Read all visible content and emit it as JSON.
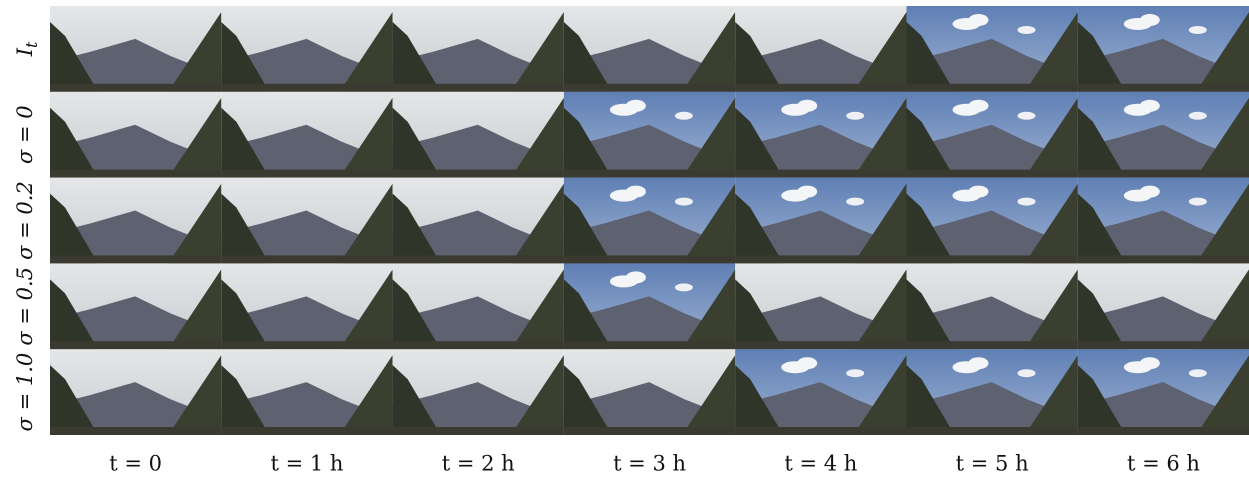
{
  "rows": [
    {
      "label": "I",
      "sub": "t"
    },
    {
      "label": "σ = 0"
    },
    {
      "label": "σ = 0.2"
    },
    {
      "label": "σ = 0.5"
    },
    {
      "label": "σ = 1.0"
    }
  ],
  "columns": [
    "t = 0",
    "t = 1 h",
    "t = 2 h",
    "t = 3 h",
    "t = 4 h",
    "t = 5 h",
    "t = 6 h"
  ]
}
